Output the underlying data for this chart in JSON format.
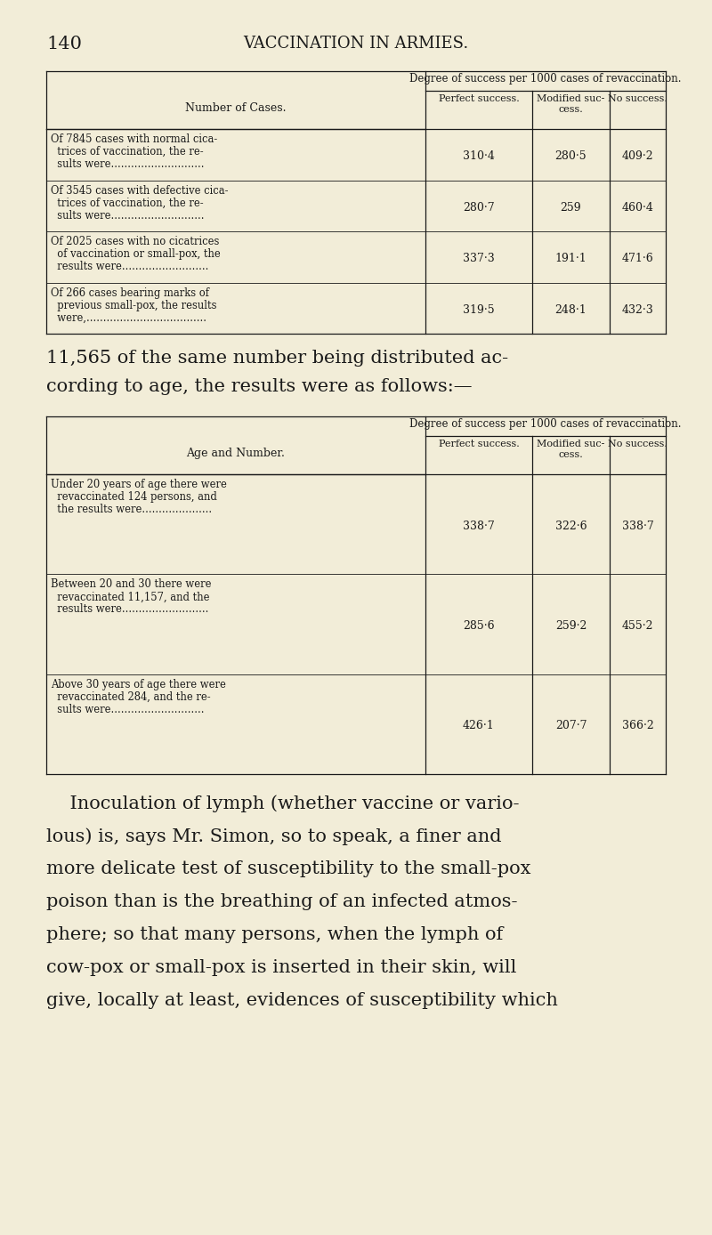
{
  "bg_color": "#f2edd8",
  "text_color": "#1a1a1a",
  "page_number": "140",
  "page_title": "VACCINATION IN ARMIES.",
  "table1_header_span": "Degree of success per 1000 cases of revaccination.",
  "table1_header_col": "Number of Cases.",
  "table1_col1": "Perfect success.",
  "table1_col2": "Modified suc-\ncess.",
  "table1_col3": "No success.",
  "table1_rows": [
    {
      "lines": [
        "Of 7845 cases with normal cica-",
        "  trices of vaccination, the re-",
        "  sults were............................"
      ],
      "v1": "310·4",
      "v2": "280·5",
      "v3": "409·2"
    },
    {
      "lines": [
        "Of 3545 cases with defective cica-",
        "  trices of vaccination, the re-",
        "  sults were............................"
      ],
      "v1": "280·7",
      "v2": "259",
      "v3": "460·4"
    },
    {
      "lines": [
        "Of 2025 cases with no cicatrices",
        "  of vaccination or small-pox, the",
        "  results were.........................."
      ],
      "v1": "337·3",
      "v2": "191·1",
      "v3": "471·6"
    },
    {
      "lines": [
        "Of 266 cases bearing marks of",
        "  previous small-pox, the results",
        "  were,...................................."
      ],
      "v1": "319·5",
      "v2": "248·1",
      "v3": "432·3"
    }
  ],
  "middle_text_line1": "11,565 of the same number being distributed ac-",
  "middle_text_line2": "cording to age, the results were as follows:—",
  "table2_header_span": "Degree of success per 1000 cases of revaccination.",
  "table2_header_col": "Age and Number.",
  "table2_col1": "Perfect success.",
  "table2_col2": "Modified suc-\ncess.",
  "table2_col3": "No success.",
  "table2_rows": [
    {
      "lines": [
        "Under 20 years of age there were",
        "  revaccinated 124 persons, and",
        "  the results were....................."
      ],
      "v1": "338·7",
      "v2": "322·6",
      "v3": "338·7"
    },
    {
      "lines": [
        "Between 20 and 30 there were",
        "  revaccinated 11,157, and the",
        "  results were.........................."
      ],
      "v1": "285·6",
      "v2": "259·2",
      "v3": "455·2"
    },
    {
      "lines": [
        "Above 30 years of age there were",
        "  revaccinated 284, and the re-",
        "  sults were............................"
      ],
      "v1": "426·1",
      "v2": "207·7",
      "v3": "366·2"
    }
  ],
  "bottom_lines": [
    "    Inoculation of lymph (whether vaccine or vario-",
    "lous) is, says Mr. Simon, so to speak, a finer and",
    "more delicate test of susceptibility to the small-pox",
    "poison than is the breathing of an infected atmos-",
    "phere; so that many persons, when the lymph of",
    "cow-pox or small-pox is inserted in their skin, will",
    "give, locally at least, evidences of susceptibility which"
  ]
}
